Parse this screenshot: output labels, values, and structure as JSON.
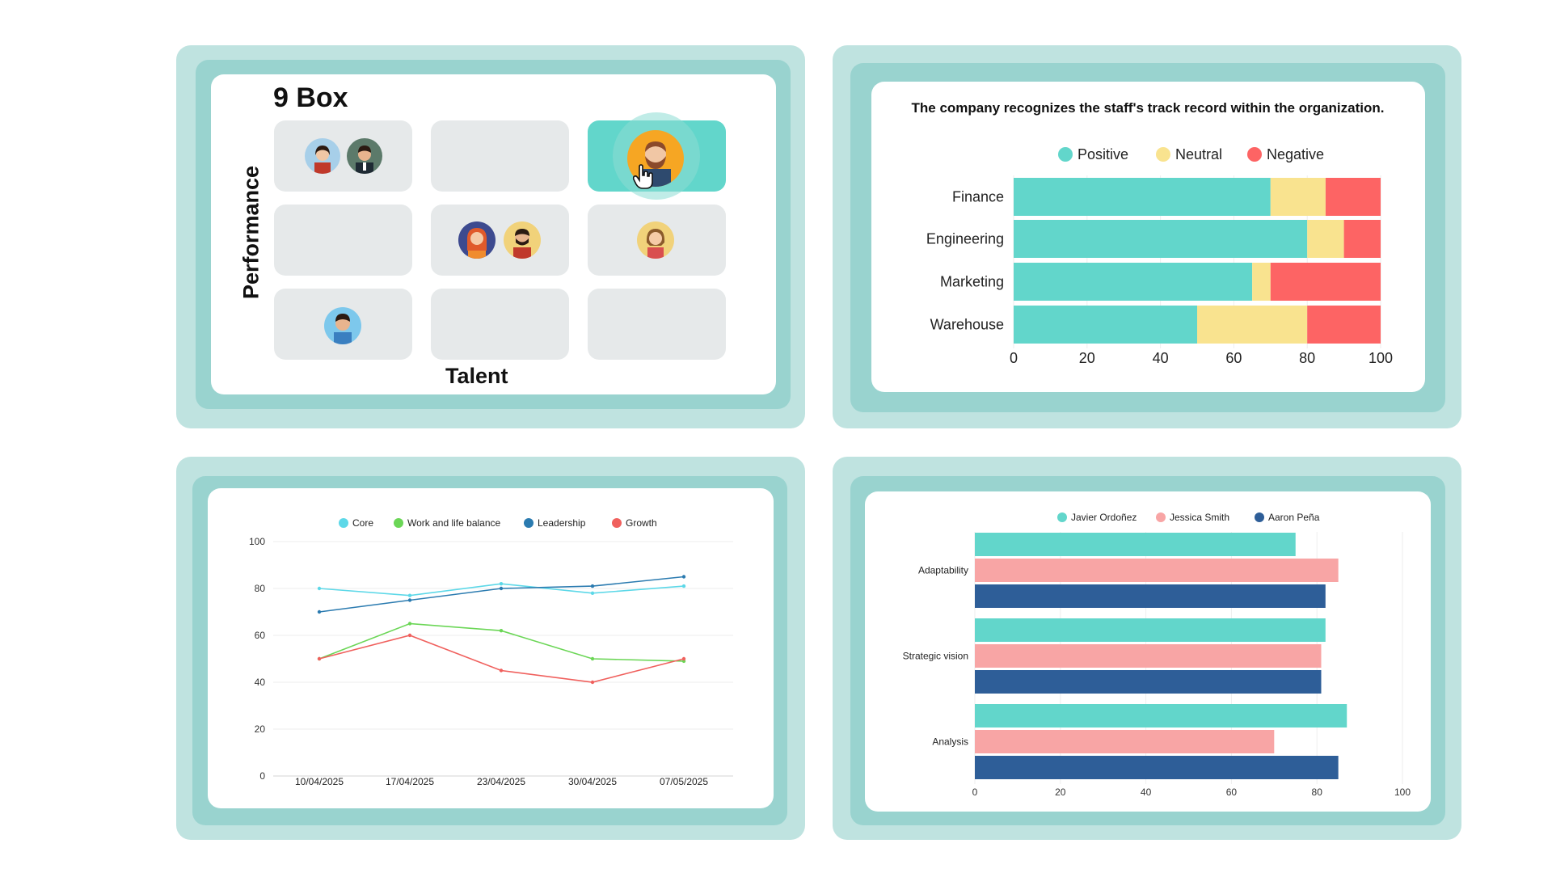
{
  "nine_box": {
    "title": "9 Box",
    "y_axis_label": "Performance",
    "x_axis_label": "Talent"
  },
  "sentiment_chart": {
    "chart_data": {
      "type": "bar",
      "orientation": "horizontal-stacked",
      "title": "The company recognizes the staff's track record within the organization.",
      "categories": [
        "Finance",
        "Engineering",
        "Marketing",
        "Warehouse"
      ],
      "series": [
        {
          "name": "Positive",
          "color": "#62d6cb",
          "values": [
            70,
            80,
            65,
            50
          ]
        },
        {
          "name": "Neutral",
          "color": "#f9e38f",
          "values": [
            15,
            10,
            5,
            30
          ]
        },
        {
          "name": "Negative",
          "color": "#fd6464",
          "values": [
            15,
            10,
            30,
            20
          ]
        }
      ],
      "xlim": [
        0,
        100
      ],
      "xticks": [
        "0",
        "20",
        "40",
        "60",
        "80",
        "100"
      ],
      "legend": "top"
    }
  },
  "line_chart": {
    "chart_data": {
      "type": "line",
      "categories": [
        "10/04/2025",
        "17/04/2025",
        "23/04/2025",
        "30/04/2025",
        "07/05/2025"
      ],
      "series": [
        {
          "name": "Core",
          "color": "#5dd8e8",
          "values": [
            80,
            77,
            82,
            78,
            81
          ]
        },
        {
          "name": "Work and life balance",
          "color": "#6bd656",
          "values": [
            50,
            65,
            62,
            50,
            49
          ]
        },
        {
          "name": "Leadership",
          "color": "#2b7bb0",
          "values": [
            70,
            75,
            80,
            81,
            85
          ]
        },
        {
          "name": "Growth",
          "color": "#f0605d",
          "values": [
            50,
            60,
            45,
            40,
            50
          ]
        }
      ],
      "ylim": [
        0,
        100
      ],
      "yticks": [
        "0",
        "20",
        "40",
        "60",
        "80",
        "100"
      ],
      "legend": "top"
    }
  },
  "skills_chart": {
    "chart_data": {
      "type": "bar",
      "orientation": "horizontal-grouped",
      "categories": [
        "Adaptability",
        "Strategic vision",
        "Analysis"
      ],
      "series": [
        {
          "name": "Javier Ordoñez",
          "color": "#62d6cb",
          "values": [
            75,
            82,
            87
          ]
        },
        {
          "name": "Jessica Smith",
          "color": "#f8a5a5",
          "values": [
            85,
            81,
            70
          ]
        },
        {
          "name": "Aaron Peña",
          "color": "#2e5e98",
          "values": [
            82,
            81,
            85
          ]
        }
      ],
      "xlim": [
        0,
        100
      ],
      "xticks": [
        "0",
        "20",
        "40",
        "60",
        "80",
        "100"
      ],
      "legend": "top"
    }
  }
}
